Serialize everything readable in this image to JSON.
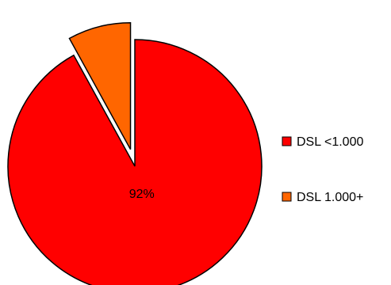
{
  "chart_data": {
    "type": "pie",
    "title": "",
    "slices": [
      {
        "label": "DSL <1.000",
        "value": 92,
        "data_label": "92%",
        "color": "#ff0000",
        "exploded": false
      },
      {
        "label": "DSL 1.000+",
        "value": 8,
        "data_label": "",
        "color": "#ff6600",
        "exploded": true
      }
    ],
    "legend": {
      "position": "right"
    },
    "start_angle_deg": 0,
    "direction": "clockwise"
  }
}
